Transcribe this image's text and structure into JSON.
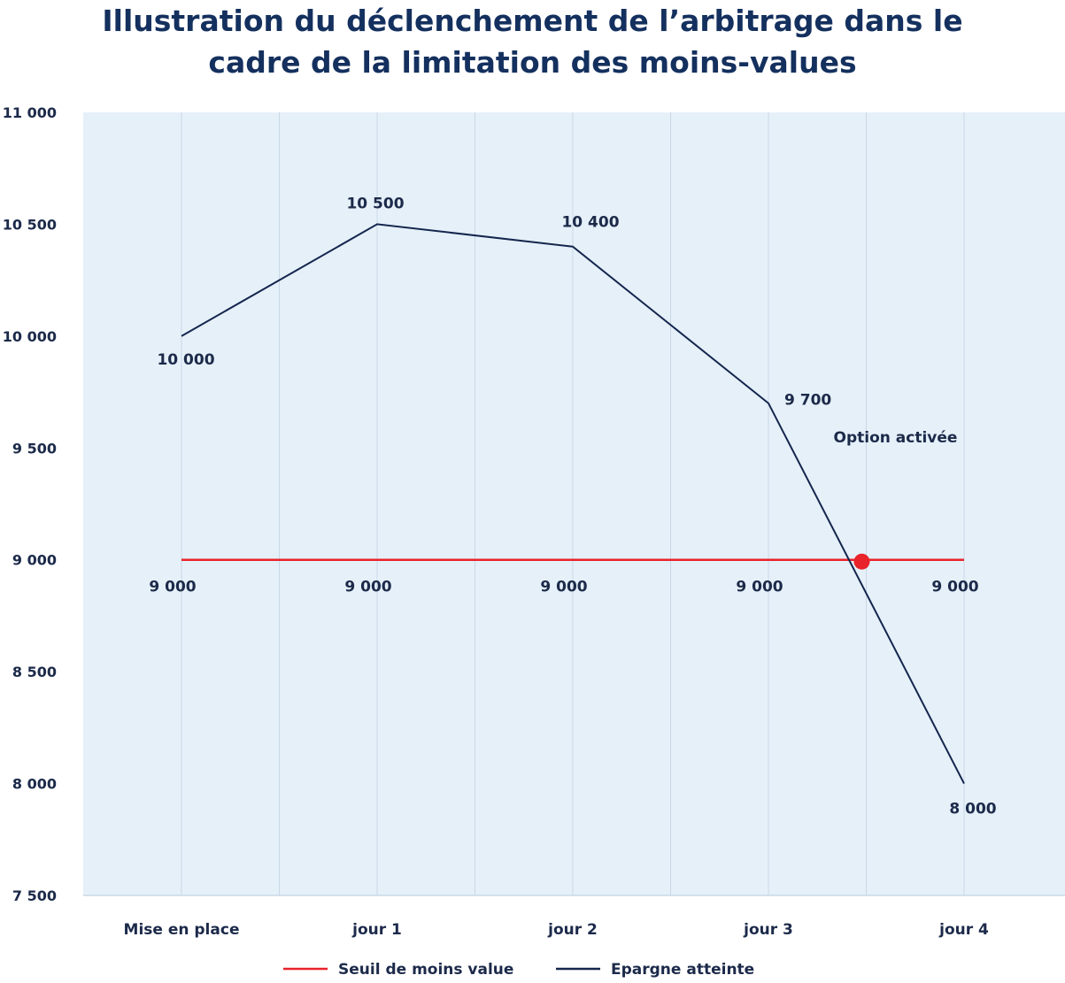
{
  "chart_data": {
    "type": "line",
    "title_lines": [
      "Illustration du déclenchement de l’arbitrage dans le",
      "cadre de la limitation des moins-values"
    ],
    "categories": [
      "Mise en place",
      "jour 1",
      "jour 2",
      "jour 3",
      "jour 4"
    ],
    "ylim": [
      7500,
      11000
    ],
    "yticks": [
      11000,
      10500,
      10000,
      9500,
      9000,
      8500,
      8000,
      7500
    ],
    "ytick_labels": [
      "11 000",
      "10 500",
      "10 000",
      "9 500",
      "9 000",
      "8 500",
      "8 000",
      "7 500"
    ],
    "grid": true,
    "legend_position": "bottom",
    "series": [
      {
        "name": "Seuil de moins value",
        "color": "#e8232a",
        "values": [
          9000,
          9000,
          9000,
          9000,
          9000
        ],
        "labels": [
          "9 000",
          "9 000",
          "9 000",
          "9 000",
          "9 000"
        ]
      },
      {
        "name": "Epargne atteinte",
        "color": "#14264d",
        "values": [
          10000,
          10500,
          10400,
          9700,
          8000
        ],
        "labels": [
          "10 000",
          "10 500",
          "10 400",
          "9 700",
          "8 000"
        ]
      }
    ],
    "annotation": {
      "text": "Option activée",
      "x_category_position": 3.5,
      "y": 9000,
      "marker_color": "#e8232a"
    },
    "colors": {
      "plot_background": "#e6f0f9",
      "grid": "#c9d8e6"
    }
  }
}
